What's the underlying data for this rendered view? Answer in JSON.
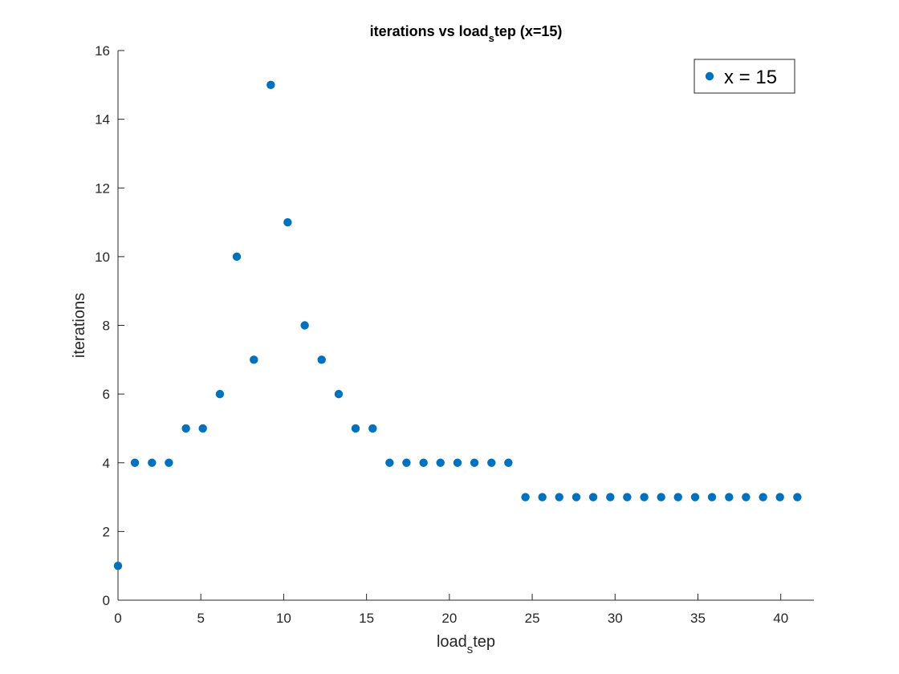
{
  "chart_data": {
    "type": "scatter",
    "title": {
      "main": "iterations vs load",
      "sub": "s",
      "rest": "tep (x=15)"
    },
    "xlabel": {
      "main": "load",
      "sub": "s",
      "rest": "tep"
    },
    "ylabel": "iterations",
    "xlim": [
      0,
      42
    ],
    "ylim": [
      0,
      16
    ],
    "xticks": [
      "0",
      "5",
      "10",
      "15",
      "20",
      "25",
      "30",
      "35",
      "40"
    ],
    "yticks": [
      "0",
      "2",
      "4",
      "6",
      "8",
      "10",
      "12",
      "14",
      "16"
    ],
    "grid": false,
    "legend_position": "top-right",
    "color": "#0072BD",
    "series": [
      {
        "name": "x = 15",
        "x": [
          0,
          1.02,
          2.05,
          3.07,
          4.1,
          5.12,
          6.15,
          7.17,
          8.2,
          9.22,
          10.24,
          11.27,
          12.29,
          13.32,
          14.34,
          15.37,
          16.39,
          17.41,
          18.44,
          19.46,
          20.49,
          21.51,
          22.54,
          23.56,
          24.59,
          25.61,
          26.63,
          27.66,
          28.68,
          29.71,
          30.73,
          31.76,
          32.78,
          33.8,
          34.83,
          35.85,
          36.88,
          37.9,
          38.93,
          39.95,
          41.0
        ],
        "y": [
          1,
          4,
          4,
          4,
          5,
          5,
          6,
          10,
          7,
          15,
          11,
          8,
          7,
          6,
          5,
          5,
          4,
          4,
          4,
          4,
          4,
          4,
          4,
          4,
          3,
          3,
          3,
          3,
          3,
          3,
          3,
          3,
          3,
          3,
          3,
          3,
          3,
          3,
          3,
          3,
          3
        ]
      }
    ]
  }
}
